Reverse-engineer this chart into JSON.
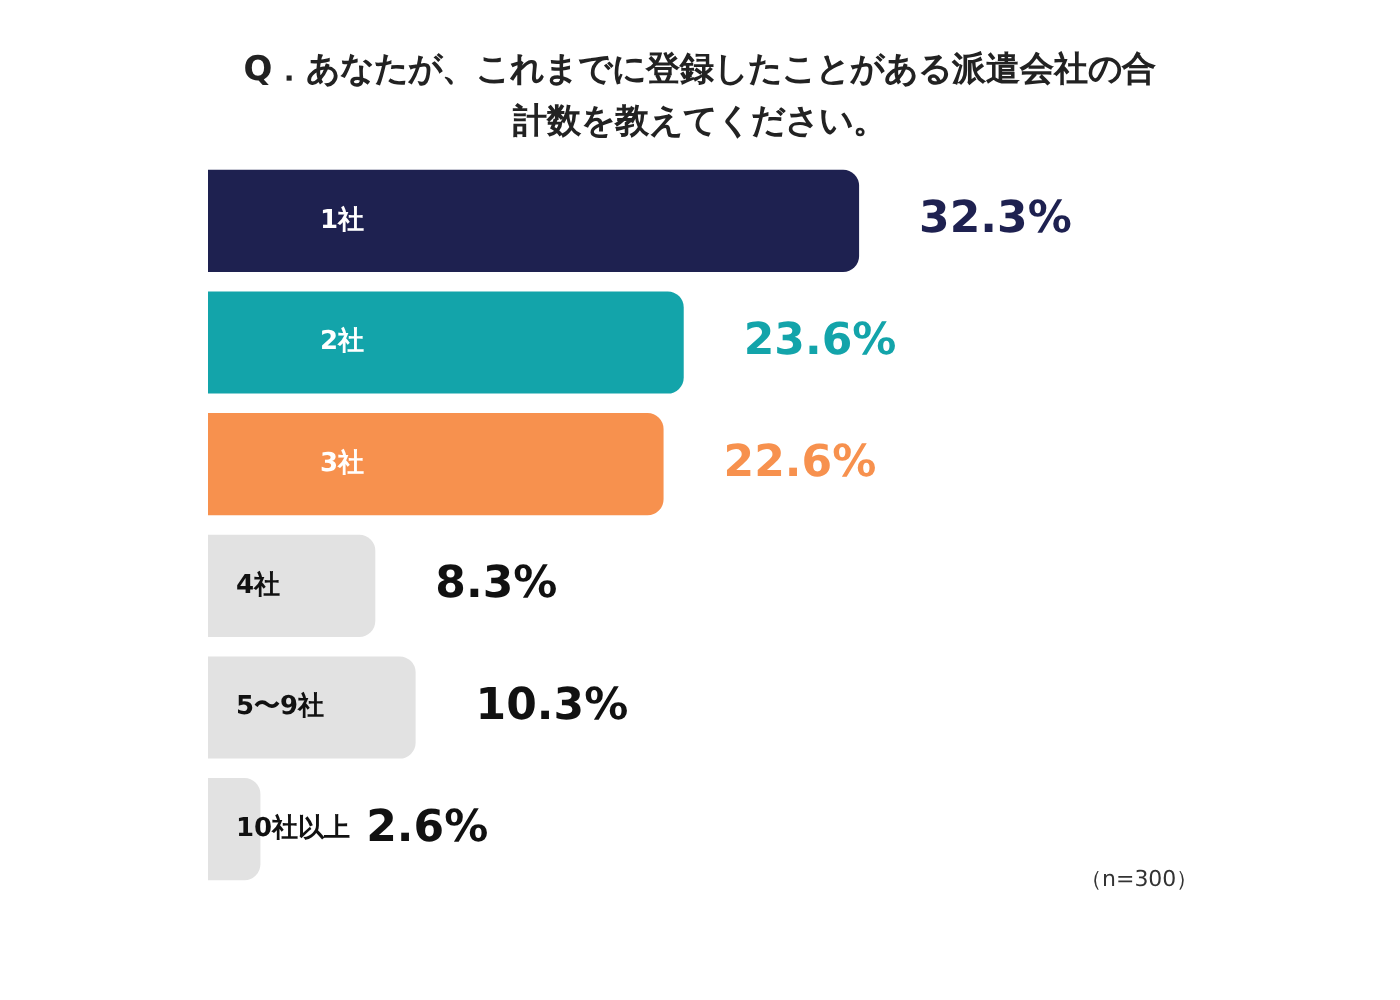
{
  "chart_data": {
    "type": "bar",
    "orientation": "horizontal",
    "title": "Q．あなたが、これまでに登録したことがある派遣会社の合計数を教えてください。",
    "categories": [
      "1社",
      "2社",
      "3社",
      "4社",
      "5〜9社",
      "10社以上"
    ],
    "values": [
      32.3,
      23.6,
      22.6,
      8.3,
      10.3,
      2.6
    ],
    "value_labels": [
      "32.3%",
      "23.6%",
      "22.6%",
      "8.3%",
      "10.3%",
      "2.6%"
    ],
    "colors": [
      "#1e2150",
      "#13a4aa",
      "#f7914e",
      "#e2e2e2",
      "#e2e2e2",
      "#e2e2e2"
    ],
    "annotations": [
      "（n=300）"
    ],
    "legend": false
  }
}
